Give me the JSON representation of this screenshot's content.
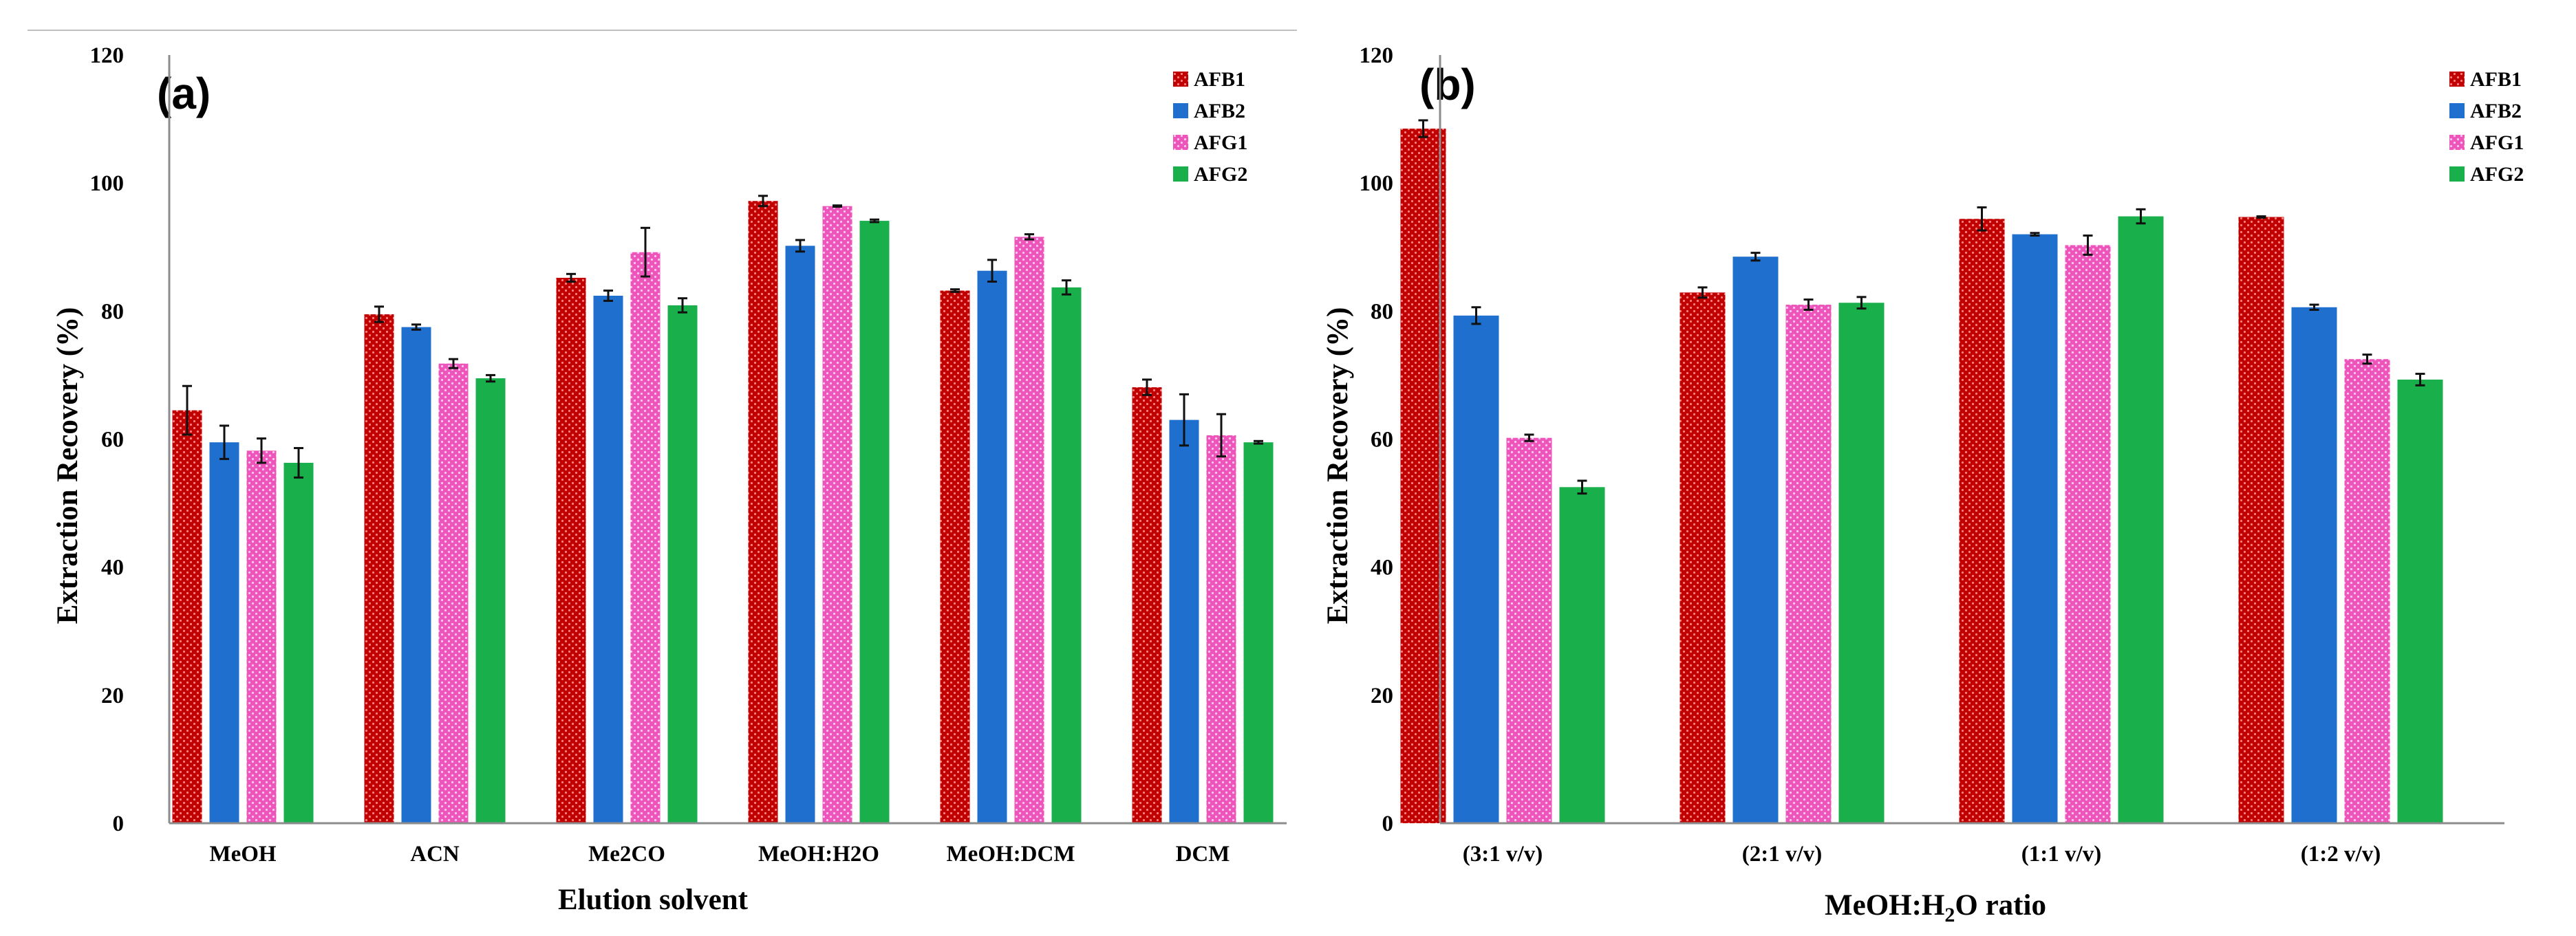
{
  "colors": {
    "AFB1": "#c00000",
    "AFB2": "#1f6fcf",
    "AFG1": "#ee55bb",
    "AFG2": "#19b04b"
  },
  "chart_data": [
    {
      "type": "bar",
      "panel_label": "(a)",
      "xlabel": "Elution solvent",
      "ylabel": "Extraction Recovery  (%)",
      "ylim": [
        0,
        120
      ],
      "yticks": [
        "0",
        "20",
        "40",
        "60",
        "80",
        "100",
        "120"
      ],
      "legend_position": "top-right",
      "categories": [
        "MeOH",
        "ACN",
        "Me2CO",
        "MeOH:H2O",
        "MeOH:DCM",
        "DCM"
      ],
      "series": [
        {
          "name": "AFB1",
          "values": [
            64.5,
            79.5,
            85.2,
            97.2,
            83.2,
            68.1
          ],
          "errors": [
            3.8,
            1.2,
            0.6,
            0.8,
            0.2,
            1.2
          ]
        },
        {
          "name": "AFB2",
          "values": [
            59.5,
            77.5,
            82.4,
            90.2,
            86.3,
            63.0
          ],
          "errors": [
            2.6,
            0.4,
            0.8,
            0.9,
            1.7,
            4.0
          ]
        },
        {
          "name": "AFG1",
          "values": [
            58.2,
            71.8,
            89.2,
            96.4,
            91.6,
            60.6
          ],
          "errors": [
            1.9,
            0.7,
            3.8,
            0.1,
            0.4,
            3.3
          ]
        },
        {
          "name": "AFG2",
          "values": [
            56.3,
            69.5,
            80.9,
            94.1,
            83.7,
            59.5
          ],
          "errors": [
            2.3,
            0.5,
            1.1,
            0.2,
            1.1,
            0.2
          ]
        }
      ]
    },
    {
      "type": "bar",
      "panel_label": "(b)",
      "xlabel_main": "MeOH:H",
      "xlabel_sub": "2",
      "xlabel_tail": "O ratio",
      "ylabel": "Extraction Recovery  (%)",
      "ylim": [
        0,
        120
      ],
      "yticks": [
        "0",
        "20",
        "40",
        "60",
        "80",
        "100",
        "120"
      ],
      "legend_position": "top-right",
      "categories": [
        "(3:1 v/v)",
        "(2:1 v/v)",
        "(1:1 v/v)",
        "(1:2 v/v)"
      ],
      "series": [
        {
          "name": "AFB1",
          "values": [
            108.5,
            82.9,
            94.4,
            94.7
          ],
          "errors": [
            1.3,
            0.8,
            1.8,
            0.1
          ]
        },
        {
          "name": "AFB2",
          "values": [
            79.3,
            88.5,
            92.0,
            80.6
          ],
          "errors": [
            1.3,
            0.6,
            0.2,
            0.4
          ]
        },
        {
          "name": "AFG1",
          "values": [
            60.2,
            81.0,
            90.3,
            72.5
          ],
          "errors": [
            0.5,
            0.8,
            1.5,
            0.7
          ]
        },
        {
          "name": "AFG2",
          "values": [
            52.5,
            81.3,
            94.8,
            69.3
          ],
          "errors": [
            1.0,
            0.9,
            1.1,
            0.9
          ]
        }
      ]
    }
  ]
}
